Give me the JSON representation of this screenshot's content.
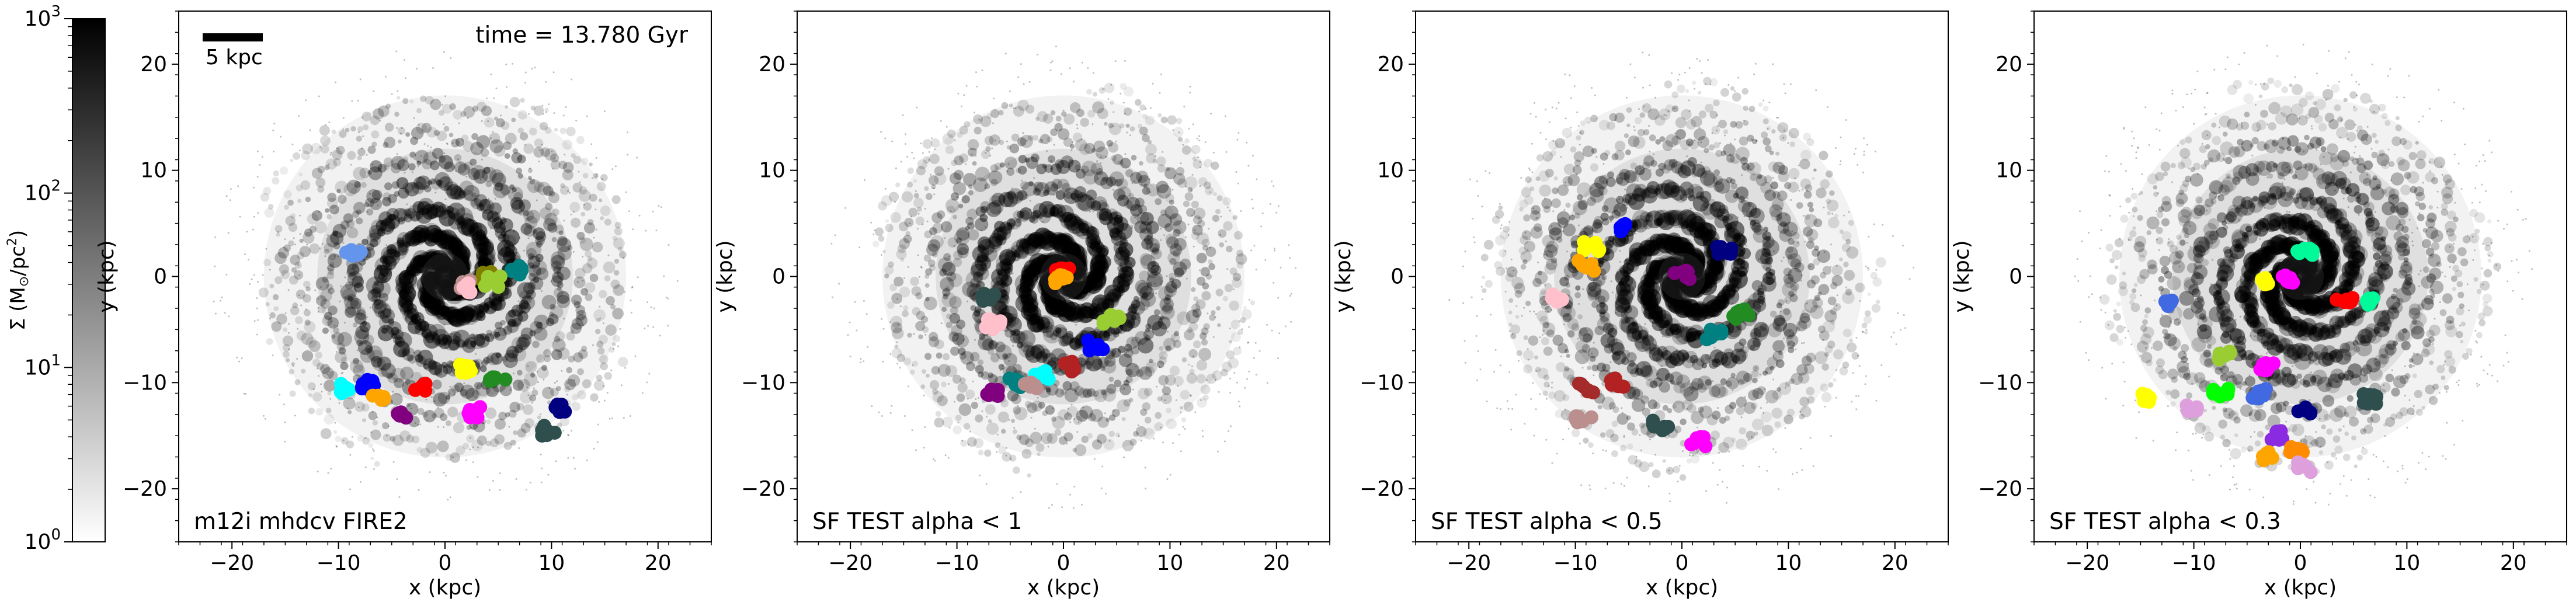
{
  "time_label": "time = 13.780 Gyr",
  "scale_bar": "5 kpc",
  "colorbar": {
    "label": "Σ (M⊙/pc²)",
    "label_main": "Σ (M",
    "label_sun": "⊙",
    "label_rest": "/pc",
    "label_exp": "2",
    "label_close": ")",
    "ticks": [
      {
        "base": "10",
        "exp": "0",
        "value": 1
      },
      {
        "base": "10",
        "exp": "1",
        "value": 10
      },
      {
        "base": "10",
        "exp": "2",
        "value": 100
      },
      {
        "base": "10",
        "exp": "3",
        "value": 1000
      }
    ],
    "scale": "log",
    "range": [
      1,
      1000
    ],
    "colormap": [
      "#ffffff",
      "#000000"
    ]
  },
  "chart_data": [
    {
      "type": "scatter",
      "panel_label": "m12i mhdcv FIRE2",
      "xlabel": "x (kpc)",
      "ylabel": "y (kpc)",
      "xlim": [
        -25,
        25
      ],
      "ylim": [
        -25,
        25
      ],
      "xticks": [
        -20,
        -10,
        0,
        10,
        20
      ],
      "yticks": [
        -20,
        -10,
        0,
        10,
        20
      ],
      "clumps": [
        {
          "color": "#6495ed",
          "x": -8.5,
          "y": 2.1
        },
        {
          "color": "#008080",
          "x": 7.0,
          "y": 0.5
        },
        {
          "color": "#808000",
          "x": 4.0,
          "y": 0.0
        },
        {
          "color": "#bc8f8f",
          "x": 1.8,
          "y": -0.8
        },
        {
          "color": "#ffc0cb",
          "x": 2.5,
          "y": -1.0
        },
        {
          "color": "#9acd32",
          "x": 4.5,
          "y": -0.5
        },
        {
          "color": "#ffff00",
          "x": 2.2,
          "y": -8.6
        },
        {
          "color": "#228b22",
          "x": 5.0,
          "y": -9.5
        },
        {
          "color": "#ff0000",
          "x": -2.5,
          "y": -10.5
        },
        {
          "color": "#00ffff",
          "x": -9.5,
          "y": -10.5
        },
        {
          "color": "#0000ff",
          "x": -7.0,
          "y": -10.2
        },
        {
          "color": "#ffa500",
          "x": -6.0,
          "y": -11.5
        },
        {
          "color": "#800080",
          "x": -4.0,
          "y": -13.2
        },
        {
          "color": "#ff00ff",
          "x": 2.5,
          "y": -12.8
        },
        {
          "color": "#000080",
          "x": 11.0,
          "y": -12.5
        },
        {
          "color": "#2f4f4f",
          "x": 9.8,
          "y": -14.5
        }
      ]
    },
    {
      "type": "scatter",
      "panel_label": "SF TEST alpha < 1",
      "xlabel": "x (kpc)",
      "ylabel": "y (kpc)",
      "xlim": [
        -25,
        25
      ],
      "ylim": [
        -25,
        25
      ],
      "xticks": [
        -20,
        -10,
        0,
        10,
        20
      ],
      "yticks": [
        -20,
        -10,
        0,
        10,
        20
      ],
      "clumps": [
        {
          "color": "#ff0000",
          "x": 0.0,
          "y": 0.6
        },
        {
          "color": "#ffa500",
          "x": -0.3,
          "y": -0.3
        },
        {
          "color": "#2f4f4f",
          "x": -7.0,
          "y": -2.0
        },
        {
          "color": "#ffc0cb",
          "x": -6.5,
          "y": -4.5
        },
        {
          "color": "#9acd32",
          "x": 4.5,
          "y": -4.0
        },
        {
          "color": "#0000ff",
          "x": 3.0,
          "y": -6.5
        },
        {
          "color": "#b22222",
          "x": 0.5,
          "y": -8.5
        },
        {
          "color": "#00ffff",
          "x": -2.0,
          "y": -9.2
        },
        {
          "color": "#008080",
          "x": -4.5,
          "y": -10.0
        },
        {
          "color": "#bc8f8f",
          "x": -3.0,
          "y": -10.2
        },
        {
          "color": "#800080",
          "x": -6.5,
          "y": -11.0
        }
      ]
    },
    {
      "type": "scatter",
      "panel_label": "SF TEST alpha < 0.5",
      "xlabel": "x (kpc)",
      "ylabel": "y (kpc)",
      "xlim": [
        -25,
        25
      ],
      "ylim": [
        -25,
        25
      ],
      "xticks": [
        -20,
        -10,
        0,
        10,
        20
      ],
      "yticks": [
        -20,
        -10,
        0,
        10,
        20
      ],
      "clumps": [
        {
          "color": "#0000ff",
          "x": -5.0,
          "y": 4.5
        },
        {
          "color": "#ffff00",
          "x": -8.5,
          "y": 2.8
        },
        {
          "color": "#ffa500",
          "x": -9.0,
          "y": 1.0
        },
        {
          "color": "#000080",
          "x": 4.0,
          "y": 2.5
        },
        {
          "color": "#800080",
          "x": 0.0,
          "y": 0.2
        },
        {
          "color": "#ffc0cb",
          "x": -11.5,
          "y": -2.0
        },
        {
          "color": "#228b22",
          "x": 5.5,
          "y": -3.5
        },
        {
          "color": "#008080",
          "x": 3.0,
          "y": -5.5
        },
        {
          "color": "#a52a2a",
          "x": -9.0,
          "y": -10.5
        },
        {
          "color": "#b22222",
          "x": -6.0,
          "y": -10.0
        },
        {
          "color": "#bc8f8f",
          "x": -9.2,
          "y": -13.5
        },
        {
          "color": "#2f4f4f",
          "x": -2.0,
          "y": -14.0
        },
        {
          "color": "#ff00ff",
          "x": 1.5,
          "y": -15.5
        }
      ]
    },
    {
      "type": "scatter",
      "panel_label": "SF TEST alpha < 0.3",
      "xlabel": "x (kpc)",
      "ylabel": "y (kpc)",
      "xlim": [
        -25,
        25
      ],
      "ylim": [
        -25,
        25
      ],
      "xticks": [
        -20,
        -10,
        0,
        10,
        20
      ],
      "yticks": [
        -20,
        -10,
        0,
        10,
        20
      ],
      "clumps": [
        {
          "color": "#00fa9a",
          "x": 0.5,
          "y": 2.5
        },
        {
          "color": "#ffff00",
          "x": -3.5,
          "y": -0.3
        },
        {
          "color": "#ff00ff",
          "x": -1.0,
          "y": -0.3
        },
        {
          "color": "#ff0000",
          "x": 4.2,
          "y": -2.0
        },
        {
          "color": "#00fa9a",
          "x": 6.5,
          "y": -2.5
        },
        {
          "color": "#4169e1",
          "x": -12.0,
          "y": -2.5
        },
        {
          "color": "#9acd32",
          "x": -7.0,
          "y": -7.5
        },
        {
          "color": "#ff00ff",
          "x": -3.0,
          "y": -8.5
        },
        {
          "color": "#00ff00",
          "x": -7.5,
          "y": -11.0
        },
        {
          "color": "#4169e1",
          "x": -4.0,
          "y": -11.0
        },
        {
          "color": "#2f4f4f",
          "x": 6.5,
          "y": -11.5
        },
        {
          "color": "#000080",
          "x": 0.5,
          "y": -12.5
        },
        {
          "color": "#ffff00",
          "x": -14.5,
          "y": -11.5
        },
        {
          "color": "#dda0dd",
          "x": -10.5,
          "y": -12.5
        },
        {
          "color": "#8a2be2",
          "x": -2.0,
          "y": -15.0
        },
        {
          "color": "#ffa500",
          "x": -3.0,
          "y": -17.0
        },
        {
          "color": "#ff8c00",
          "x": -0.3,
          "y": -16.5
        },
        {
          "color": "#dda0dd",
          "x": 0.5,
          "y": -18.0
        }
      ]
    }
  ]
}
